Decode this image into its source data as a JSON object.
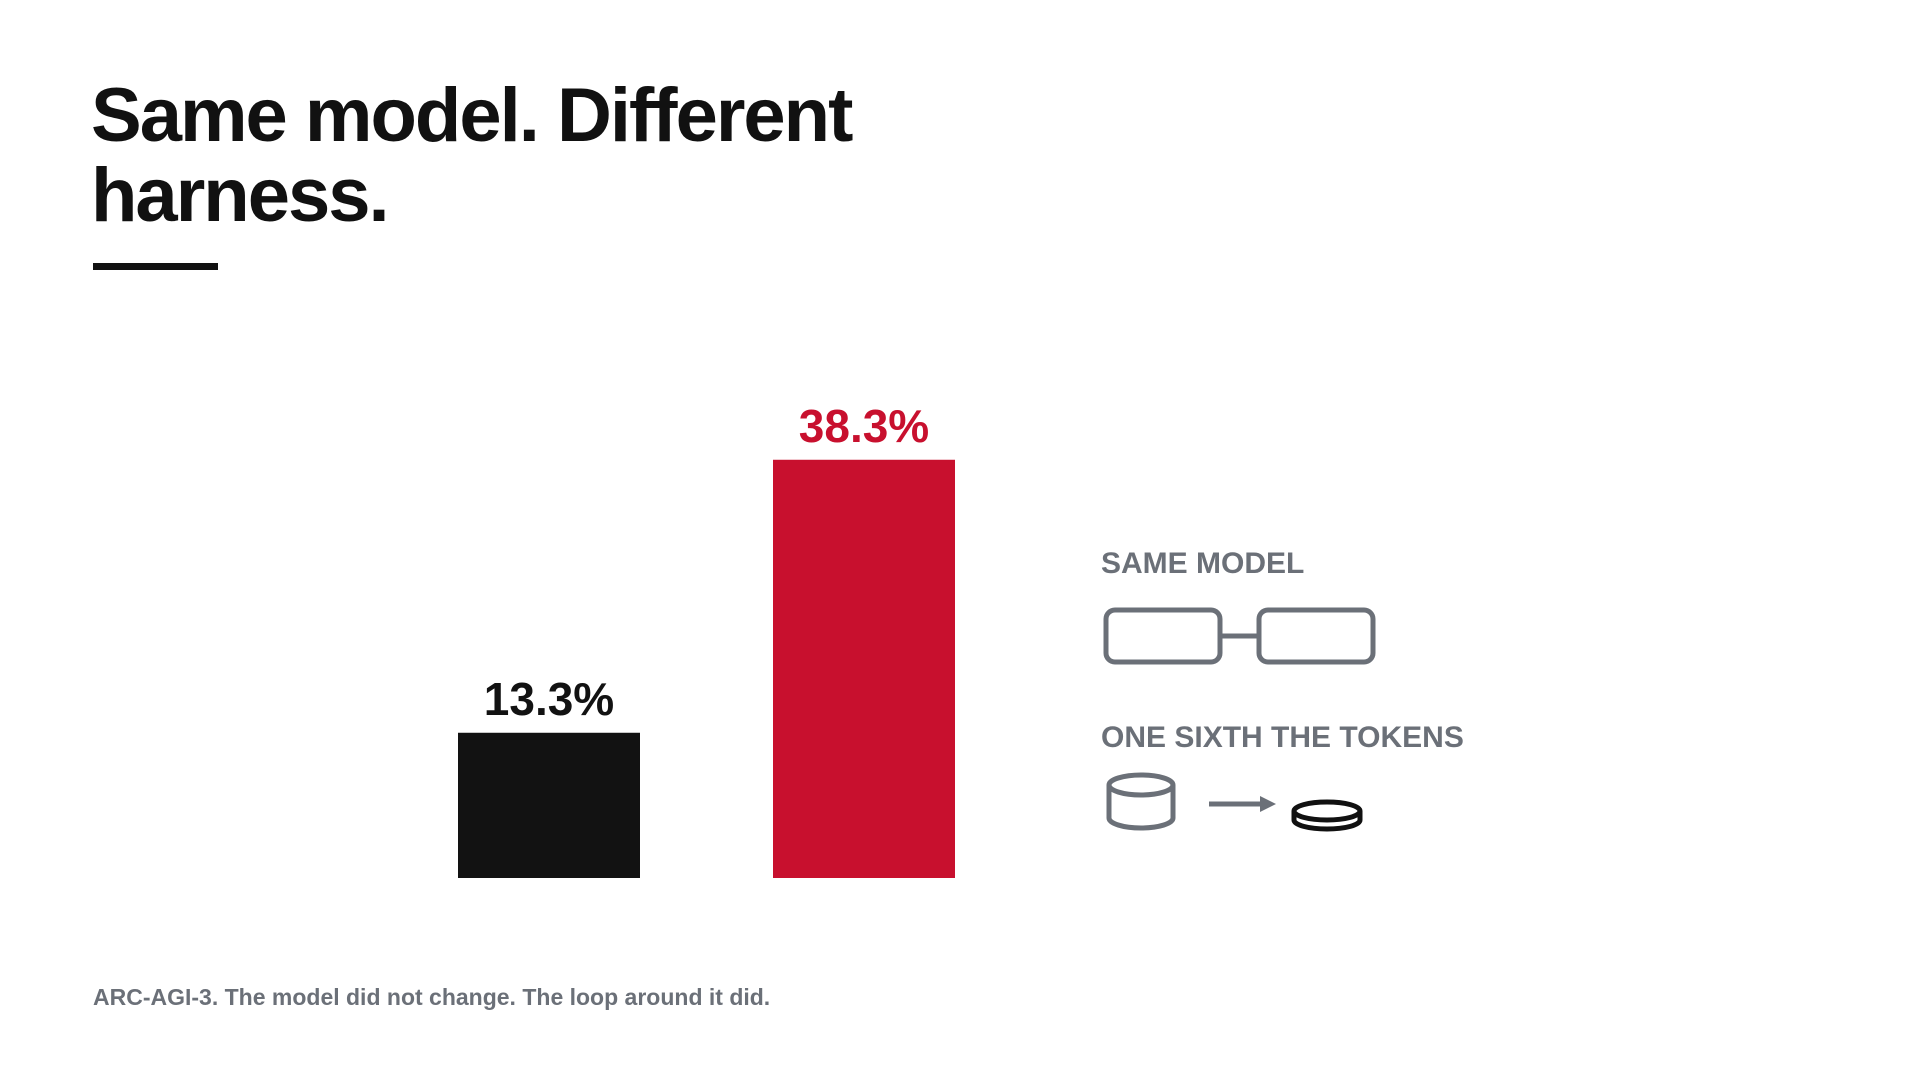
{
  "chart_data": {
    "type": "bar",
    "title": "Same model. Different harness.",
    "categories": [
      null,
      null
    ],
    "values": [
      13.3,
      38.3
    ],
    "value_labels": [
      "13.3%",
      "38.3%"
    ],
    "colors": [
      "#121212",
      "#c8102e"
    ],
    "annotations": [
      "SAME MODEL",
      "ONE SIXTH THE TOKENS"
    ],
    "footnote": "ARC-AGI-3. The model did not change. The loop around it did."
  }
}
